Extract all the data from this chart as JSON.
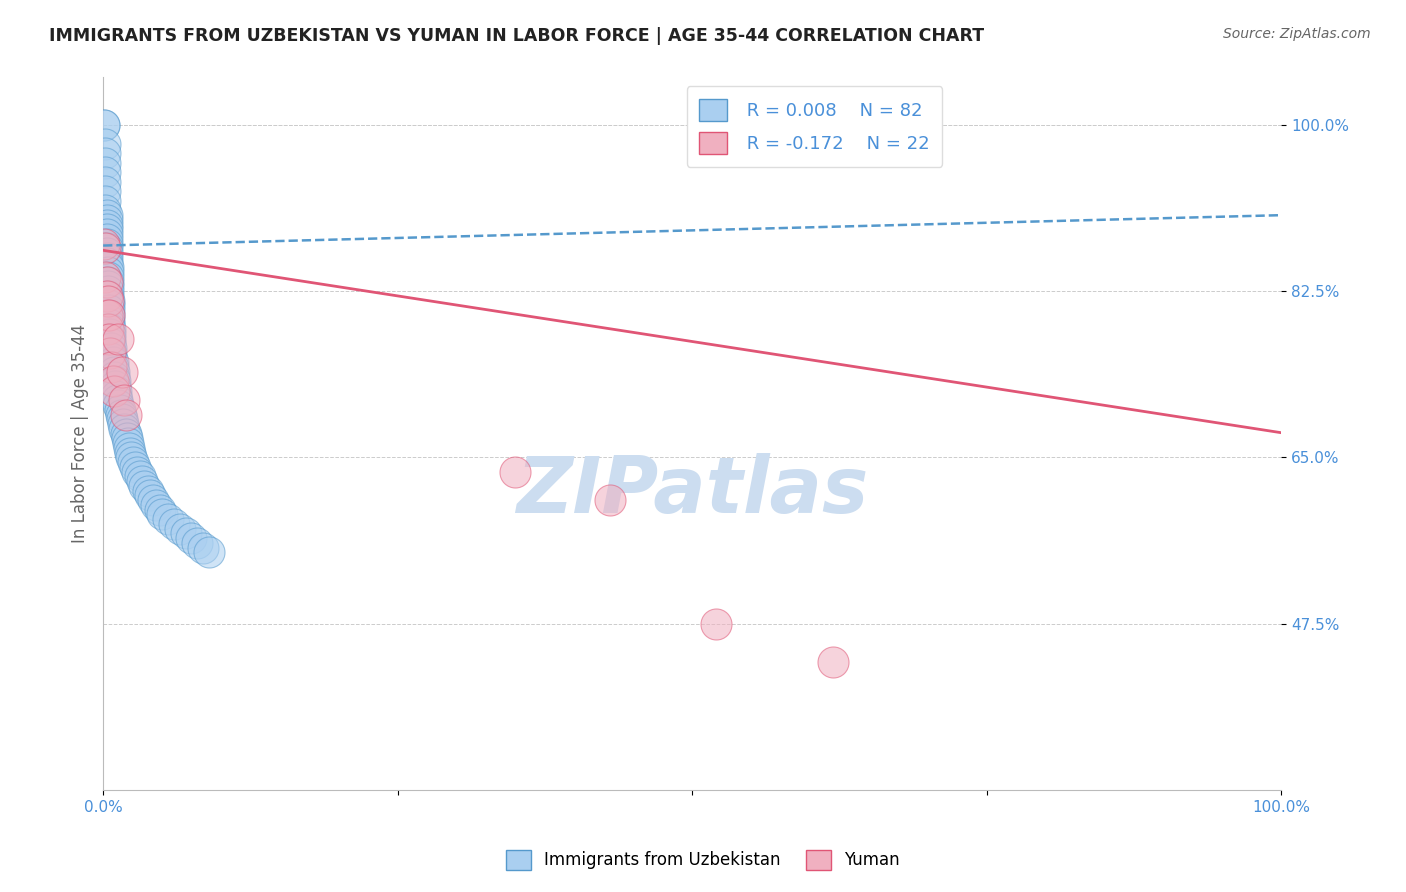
{
  "title": "IMMIGRANTS FROM UZBEKISTAN VS YUMAN IN LABOR FORCE | AGE 35-44 CORRELATION CHART",
  "source_text": "Source: ZipAtlas.com",
  "ylabel": "In Labor Force | Age 35-44",
  "xlim": [
    0.0,
    1.0
  ],
  "ylim": [
    0.3,
    1.05
  ],
  "yticks": [
    0.475,
    0.65,
    0.825,
    1.0
  ],
  "ytick_labels": [
    "47.5%",
    "65.0%",
    "82.5%",
    "100.0%"
  ],
  "xticks": [
    0.0,
    0.25,
    0.5,
    0.75,
    1.0
  ],
  "xtick_labels": [
    "0.0%",
    "",
    "",
    "",
    "100.0%"
  ],
  "legend_R1": "R = 0.008",
  "legend_N1": "N = 82",
  "legend_R2": "R = -0.172",
  "legend_N2": "N = 22",
  "blue_color": "#aacff0",
  "pink_color": "#f0b0c0",
  "trend_blue_color": "#5599cc",
  "trend_pink_color": "#e05575",
  "watermark_color": "#ccddf0",
  "title_color": "#222222",
  "axis_label_color": "#666666",
  "tick_color": "#4a90d9",
  "grid_color": "#cccccc",
  "blue_trend_start": 0.873,
  "blue_trend_end": 0.905,
  "pink_trend_start": 0.868,
  "pink_trend_end": 0.676,
  "uzbekistan_x": [
    0.001,
    0.001,
    0.002,
    0.002,
    0.002,
    0.002,
    0.002,
    0.002,
    0.002,
    0.002,
    0.003,
    0.003,
    0.003,
    0.003,
    0.003,
    0.003,
    0.003,
    0.003,
    0.003,
    0.003,
    0.003,
    0.004,
    0.004,
    0.004,
    0.004,
    0.004,
    0.004,
    0.004,
    0.005,
    0.005,
    0.005,
    0.005,
    0.005,
    0.005,
    0.006,
    0.006,
    0.006,
    0.006,
    0.007,
    0.007,
    0.007,
    0.008,
    0.008,
    0.009,
    0.009,
    0.01,
    0.01,
    0.011,
    0.011,
    0.012,
    0.013,
    0.014,
    0.015,
    0.016,
    0.017,
    0.018,
    0.019,
    0.02,
    0.021,
    0.022,
    0.023,
    0.024,
    0.025,
    0.027,
    0.029,
    0.031,
    0.033,
    0.035,
    0.038,
    0.04,
    0.042,
    0.045,
    0.048,
    0.05,
    0.055,
    0.06,
    0.065,
    0.07,
    0.075,
    0.08,
    0.085,
    0.09
  ],
  "uzbekistan_y": [
    1.0,
    1.0,
    0.98,
    0.97,
    0.96,
    0.95,
    0.94,
    0.93,
    0.92,
    0.91,
    0.905,
    0.9,
    0.895,
    0.89,
    0.885,
    0.88,
    0.875,
    0.87,
    0.865,
    0.86,
    0.855,
    0.85,
    0.845,
    0.84,
    0.835,
    0.83,
    0.825,
    0.82,
    0.815,
    0.81,
    0.805,
    0.8,
    0.795,
    0.79,
    0.785,
    0.78,
    0.775,
    0.77,
    0.765,
    0.76,
    0.755,
    0.75,
    0.745,
    0.74,
    0.735,
    0.73,
    0.725,
    0.72,
    0.715,
    0.71,
    0.705,
    0.7,
    0.695,
    0.69,
    0.685,
    0.68,
    0.675,
    0.67,
    0.665,
    0.66,
    0.655,
    0.65,
    0.645,
    0.64,
    0.635,
    0.63,
    0.625,
    0.62,
    0.615,
    0.61,
    0.605,
    0.6,
    0.595,
    0.59,
    0.585,
    0.58,
    0.575,
    0.57,
    0.565,
    0.56,
    0.555,
    0.55
  ],
  "yuman_x": [
    0.001,
    0.002,
    0.002,
    0.003,
    0.003,
    0.003,
    0.004,
    0.004,
    0.005,
    0.005,
    0.006,
    0.007,
    0.008,
    0.009,
    0.013,
    0.016,
    0.018,
    0.019,
    0.35,
    0.43,
    0.52,
    0.62
  ],
  "yuman_y": [
    0.875,
    0.87,
    0.84,
    0.835,
    0.82,
    0.8,
    0.815,
    0.785,
    0.8,
    0.775,
    0.76,
    0.745,
    0.73,
    0.72,
    0.775,
    0.74,
    0.71,
    0.695,
    0.635,
    0.605,
    0.475,
    0.435
  ]
}
